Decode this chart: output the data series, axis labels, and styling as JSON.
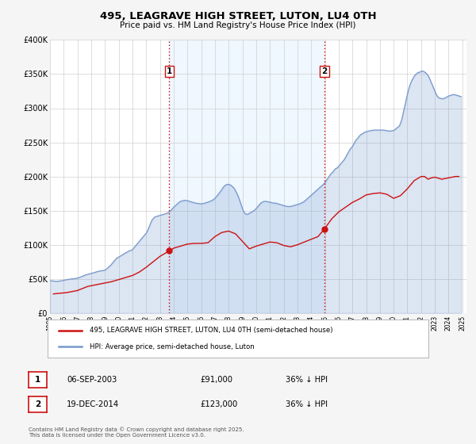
{
  "title": "495, LEAGRAVE HIGH STREET, LUTON, LU4 0TH",
  "subtitle": "Price paid vs. HM Land Registry's House Price Index (HPI)",
  "ylim": [
    0,
    400000
  ],
  "yticks": [
    0,
    50000,
    100000,
    150000,
    200000,
    250000,
    300000,
    350000,
    400000
  ],
  "ytick_labels": [
    "£0",
    "£50K",
    "£100K",
    "£150K",
    "£200K",
    "£250K",
    "£300K",
    "£350K",
    "£400K"
  ],
  "background_color": "#f5f5f5",
  "plot_bg_color": "#ffffff",
  "grid_color": "#d0d0d0",
  "legend1_label": "495, LEAGRAVE HIGH STREET, LUTON, LU4 0TH (semi-detached house)",
  "legend2_label": "HPI: Average price, semi-detached house, Luton",
  "red_color": "#cc1111",
  "blue_color": "#7799cc",
  "blue_fill_alpha": 0.25,
  "marker1_date": 2003.68,
  "marker2_date": 2014.96,
  "vline_color": "#cc0000",
  "shade_color": "#ddeeff",
  "shade_alpha": 0.45,
  "footer_text": "Contains HM Land Registry data © Crown copyright and database right 2025.\nThis data is licensed under the Open Government Licence v3.0.",
  "table_row1": [
    "1",
    "06-SEP-2003",
    "£91,000",
    "36% ↓ HPI"
  ],
  "table_row2": [
    "2",
    "19-DEC-2014",
    "£123,000",
    "36% ↓ HPI"
  ],
  "marker1_price": 91000,
  "marker2_price": 123000,
  "hpi_years": [
    1995.0,
    1995.083,
    1995.167,
    1995.25,
    1995.333,
    1995.417,
    1995.5,
    1995.583,
    1995.667,
    1995.75,
    1995.833,
    1995.917,
    1996.0,
    1996.083,
    1996.167,
    1996.25,
    1996.333,
    1996.417,
    1996.5,
    1996.583,
    1996.667,
    1996.75,
    1996.833,
    1996.917,
    1997.0,
    1997.083,
    1997.167,
    1997.25,
    1997.333,
    1997.417,
    1997.5,
    1997.583,
    1997.667,
    1997.75,
    1997.833,
    1997.917,
    1998.0,
    1998.083,
    1998.167,
    1998.25,
    1998.333,
    1998.417,
    1998.5,
    1998.583,
    1998.667,
    1998.75,
    1998.833,
    1998.917,
    1999.0,
    1999.083,
    1999.167,
    1999.25,
    1999.333,
    1999.417,
    1999.5,
    1999.583,
    1999.667,
    1999.75,
    1999.833,
    1999.917,
    2000.0,
    2000.083,
    2000.167,
    2000.25,
    2000.333,
    2000.417,
    2000.5,
    2000.583,
    2000.667,
    2000.75,
    2000.833,
    2000.917,
    2001.0,
    2001.083,
    2001.167,
    2001.25,
    2001.333,
    2001.417,
    2001.5,
    2001.583,
    2001.667,
    2001.75,
    2001.833,
    2001.917,
    2002.0,
    2002.083,
    2002.167,
    2002.25,
    2002.333,
    2002.417,
    2002.5,
    2002.583,
    2002.667,
    2002.75,
    2002.833,
    2002.917,
    2003.0,
    2003.083,
    2003.167,
    2003.25,
    2003.333,
    2003.417,
    2003.5,
    2003.583,
    2003.667,
    2003.75,
    2003.833,
    2003.917,
    2004.0,
    2004.083,
    2004.167,
    2004.25,
    2004.333,
    2004.417,
    2004.5,
    2004.583,
    2004.667,
    2004.75,
    2004.833,
    2004.917,
    2005.0,
    2005.083,
    2005.167,
    2005.25,
    2005.333,
    2005.417,
    2005.5,
    2005.583,
    2005.667,
    2005.75,
    2005.833,
    2005.917,
    2006.0,
    2006.083,
    2006.167,
    2006.25,
    2006.333,
    2006.417,
    2006.5,
    2006.583,
    2006.667,
    2006.75,
    2006.833,
    2006.917,
    2007.0,
    2007.083,
    2007.167,
    2007.25,
    2007.333,
    2007.417,
    2007.5,
    2007.583,
    2007.667,
    2007.75,
    2007.833,
    2007.917,
    2008.0,
    2008.083,
    2008.167,
    2008.25,
    2008.333,
    2008.417,
    2008.5,
    2008.583,
    2008.667,
    2008.75,
    2008.833,
    2008.917,
    2009.0,
    2009.083,
    2009.167,
    2009.25,
    2009.333,
    2009.417,
    2009.5,
    2009.583,
    2009.667,
    2009.75,
    2009.833,
    2009.917,
    2010.0,
    2010.083,
    2010.167,
    2010.25,
    2010.333,
    2010.417,
    2010.5,
    2010.583,
    2010.667,
    2010.75,
    2010.833,
    2010.917,
    2011.0,
    2011.083,
    2011.167,
    2011.25,
    2011.333,
    2011.417,
    2011.5,
    2011.583,
    2011.667,
    2011.75,
    2011.833,
    2011.917,
    2012.0,
    2012.083,
    2012.167,
    2012.25,
    2012.333,
    2012.417,
    2012.5,
    2012.583,
    2012.667,
    2012.75,
    2012.833,
    2012.917,
    2013.0,
    2013.083,
    2013.167,
    2013.25,
    2013.333,
    2013.417,
    2013.5,
    2013.583,
    2013.667,
    2013.75,
    2013.833,
    2013.917,
    2014.0,
    2014.083,
    2014.167,
    2014.25,
    2014.333,
    2014.417,
    2014.5,
    2014.583,
    2014.667,
    2014.75,
    2014.833,
    2014.917,
    2015.0,
    2015.083,
    2015.167,
    2015.25,
    2015.333,
    2015.417,
    2015.5,
    2015.583,
    2015.667,
    2015.75,
    2015.833,
    2015.917,
    2016.0,
    2016.083,
    2016.167,
    2016.25,
    2016.333,
    2016.417,
    2016.5,
    2016.583,
    2016.667,
    2016.75,
    2016.833,
    2016.917,
    2017.0,
    2017.083,
    2017.167,
    2017.25,
    2017.333,
    2017.417,
    2017.5,
    2017.583,
    2017.667,
    2017.75,
    2017.833,
    2017.917,
    2018.0,
    2018.083,
    2018.167,
    2018.25,
    2018.333,
    2018.417,
    2018.5,
    2018.583,
    2018.667,
    2018.75,
    2018.833,
    2018.917,
    2019.0,
    2019.083,
    2019.167,
    2019.25,
    2019.333,
    2019.417,
    2019.5,
    2019.583,
    2019.667,
    2019.75,
    2019.833,
    2019.917,
    2020.0,
    2020.083,
    2020.167,
    2020.25,
    2020.333,
    2020.417,
    2020.5,
    2020.583,
    2020.667,
    2020.75,
    2020.833,
    2020.917,
    2021.0,
    2021.083,
    2021.167,
    2021.25,
    2021.333,
    2021.417,
    2021.5,
    2021.583,
    2021.667,
    2021.75,
    2021.833,
    2021.917,
    2022.0,
    2022.083,
    2022.167,
    2022.25,
    2022.333,
    2022.417,
    2022.5,
    2022.583,
    2022.667,
    2022.75,
    2022.833,
    2022.917,
    2023.0,
    2023.083,
    2023.167,
    2023.25,
    2023.333,
    2023.417,
    2023.5,
    2023.583,
    2023.667,
    2023.75,
    2023.833,
    2023.917,
    2024.0,
    2024.083,
    2024.167,
    2024.25,
    2024.333,
    2024.417,
    2024.5,
    2024.583,
    2024.667,
    2024.75,
    2024.833,
    2024.917
  ],
  "hpi_vals": [
    47500,
    47200,
    47000,
    46800,
    46600,
    46500,
    46400,
    46500,
    46700,
    47000,
    47200,
    47500,
    48000,
    48300,
    48700,
    49000,
    49300,
    49600,
    49800,
    50000,
    50200,
    50400,
    50600,
    50800,
    51200,
    51700,
    52300,
    53000,
    53700,
    54400,
    55100,
    55700,
    56300,
    56800,
    57200,
    57600,
    58000,
    58500,
    59000,
    59500,
    60000,
    60500,
    61000,
    61400,
    61700,
    62000,
    62200,
    62400,
    63000,
    64000,
    65500,
    67000,
    68500,
    70000,
    72000,
    74000,
    76000,
    78000,
    80000,
    81000,
    82000,
    83000,
    84000,
    85000,
    86000,
    87000,
    88000,
    89000,
    90000,
    91000,
    91500,
    92000,
    93000,
    95000,
    97000,
    99000,
    101000,
    103000,
    105000,
    107000,
    109000,
    111000,
    113000,
    115000,
    117000,
    120000,
    124000,
    128000,
    132000,
    136000,
    138000,
    140000,
    141000,
    141500,
    142000,
    142500,
    143000,
    143500,
    144000,
    144500,
    145000,
    145500,
    146000,
    147000,
    148000,
    149500,
    151000,
    153000,
    155000,
    156500,
    158000,
    159500,
    161000,
    162500,
    163500,
    164000,
    164500,
    165000,
    165000,
    165000,
    164500,
    164000,
    163500,
    163000,
    162500,
    162000,
    161500,
    161000,
    160800,
    160600,
    160300,
    160000,
    160000,
    160200,
    160500,
    161000,
    161500,
    162000,
    162500,
    163000,
    163800,
    164500,
    165500,
    166500,
    168000,
    170000,
    172000,
    174000,
    176000,
    178500,
    181000,
    183500,
    185500,
    187000,
    188000,
    188500,
    188500,
    188000,
    187000,
    185500,
    184000,
    182000,
    179000,
    175500,
    172000,
    168000,
    163000,
    158000,
    153000,
    149000,
    146500,
    145000,
    144500,
    145000,
    146000,
    147000,
    148000,
    149000,
    150000,
    151500,
    153000,
    155000,
    157000,
    159000,
    161000,
    162000,
    163000,
    163500,
    163500,
    163500,
    163000,
    162800,
    162500,
    162000,
    161500,
    161000,
    161000,
    161000,
    160500,
    160000,
    159500,
    159000,
    158500,
    158000,
    157500,
    157000,
    156500,
    156200,
    156000,
    156000,
    156200,
    156500,
    157000,
    157500,
    158000,
    158500,
    159000,
    159500,
    160000,
    160800,
    161500,
    162500,
    163500,
    165000,
    166500,
    168000,
    169500,
    171000,
    172500,
    174000,
    175500,
    177000,
    178500,
    180000,
    181500,
    183000,
    184500,
    186000,
    187500,
    189000,
    191000,
    193500,
    196000,
    198500,
    201000,
    203500,
    205000,
    207000,
    209000,
    211000,
    212000,
    213000,
    215000,
    217000,
    219000,
    221000,
    223000,
    225000,
    228000,
    231000,
    234000,
    237000,
    240000,
    242000,
    244000,
    247000,
    250000,
    253000,
    255000,
    257000,
    259000,
    261000,
    262000,
    263000,
    264000,
    265000,
    265500,
    266000,
    266500,
    267000,
    267200,
    267500,
    267800,
    268000,
    268000,
    268000,
    268000,
    268000,
    268000,
    268000,
    268000,
    268000,
    267800,
    267500,
    267000,
    266800,
    266500,
    266500,
    266800,
    267000,
    267500,
    268500,
    270000,
    271500,
    272500,
    274000,
    278000,
    283000,
    290000,
    298000,
    305000,
    313000,
    320000,
    327000,
    333000,
    337000,
    341000,
    344000,
    347000,
    349000,
    350500,
    352000,
    352500,
    353000,
    354000,
    354500,
    354000,
    353000,
    352000,
    350000,
    348000,
    345000,
    341000,
    337000,
    333000,
    329000,
    325000,
    321000,
    318000,
    316000,
    315000,
    314500,
    314000,
    314000,
    314500,
    315000,
    316000,
    317000,
    318000,
    318500,
    319000,
    319500,
    320000,
    320000,
    319500,
    319000,
    318500,
    318000,
    317500,
    317000
  ],
  "price_years": [
    1995.25,
    1995.5,
    1995.75,
    1996.0,
    1996.25,
    1996.5,
    1996.75,
    1997.0,
    1997.25,
    1997.5,
    1997.75,
    1998.0,
    1998.5,
    1999.0,
    1999.5,
    2000.0,
    2000.5,
    2001.0,
    2001.5,
    2002.0,
    2002.5,
    2003.0,
    2003.68,
    2004.0,
    2004.5,
    2005.0,
    2005.5,
    2006.0,
    2006.5,
    2007.0,
    2007.5,
    2008.0,
    2008.5,
    2009.0,
    2009.5,
    2010.0,
    2010.5,
    2011.0,
    2011.5,
    2012.0,
    2012.5,
    2013.0,
    2013.5,
    2014.0,
    2014.5,
    2014.96,
    2015.5,
    2016.0,
    2016.5,
    2017.0,
    2017.5,
    2018.0,
    2018.5,
    2019.0,
    2019.5,
    2020.0,
    2020.5,
    2021.0,
    2021.5,
    2022.0,
    2022.25,
    2022.5,
    2022.75,
    2023.0,
    2023.5,
    2024.0,
    2024.25,
    2024.5,
    2024.75
  ],
  "price_vals": [
    28000,
    28500,
    29000,
    29500,
    30000,
    31000,
    32000,
    33000,
    35000,
    37000,
    39000,
    40000,
    42000,
    44000,
    46000,
    49000,
    52000,
    55000,
    60000,
    67000,
    75000,
    83000,
    91000,
    95000,
    98000,
    101000,
    102000,
    102000,
    103000,
    112000,
    118000,
    120000,
    116000,
    105000,
    94000,
    98000,
    101000,
    104000,
    103000,
    99000,
    97000,
    100000,
    104000,
    108000,
    112000,
    123000,
    138000,
    148000,
    155000,
    162000,
    167000,
    173000,
    175000,
    176000,
    174000,
    168000,
    172000,
    182000,
    194000,
    200000,
    200000,
    196000,
    198000,
    199000,
    196000,
    198000,
    199000,
    200000,
    200000
  ]
}
